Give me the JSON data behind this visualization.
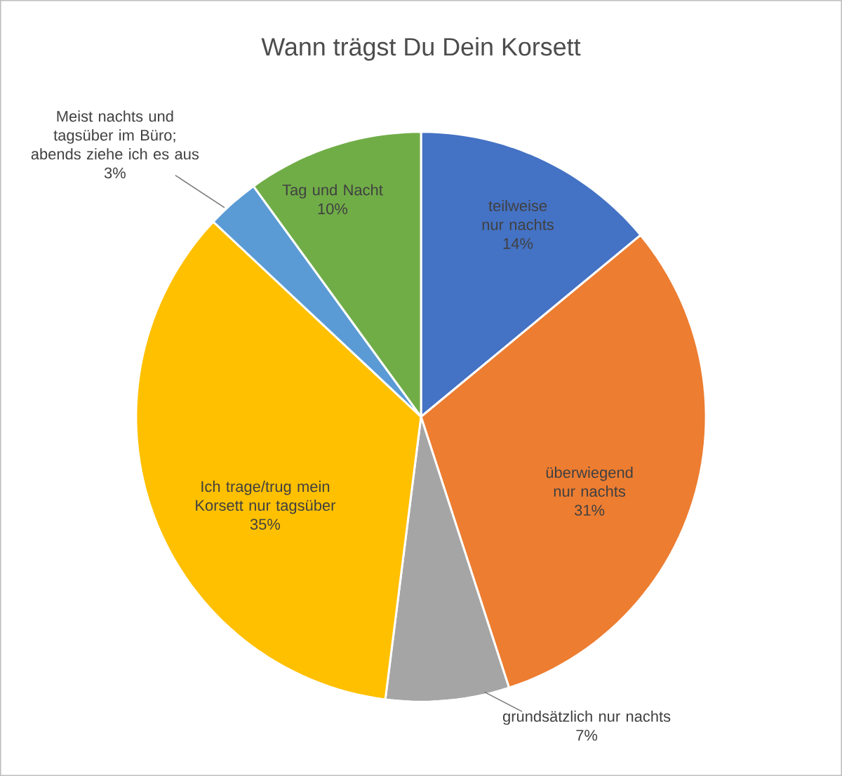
{
  "chart_data": {
    "type": "pie",
    "title": "Wann trägst Du Dein Korsett",
    "categories": [
      "teilweise nur nachts",
      "überwiegend nur nachts",
      "grundsätzlich nur nachts",
      "Ich trage/trug mein Korsett nur tagsüber",
      "Meist nachts und tagsüber im Büro; abends ziehe ich es aus",
      "Tag und Nacht"
    ],
    "values": [
      14,
      31,
      7,
      35,
      3,
      10
    ],
    "colors": [
      "#4472c4",
      "#ed7d31",
      "#a5a5a5",
      "#ffc000",
      "#5b9bd5",
      "#70ad47"
    ],
    "value_labels": [
      "14%",
      "31%",
      "7%",
      "35%",
      "3%",
      "10%"
    ]
  }
}
